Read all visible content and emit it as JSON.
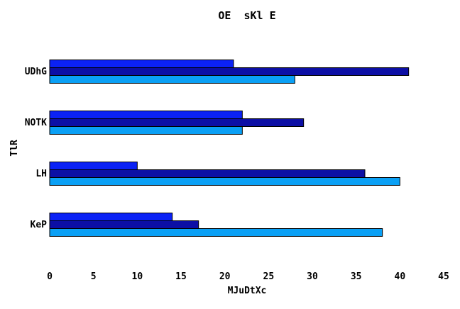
{
  "chart_data": {
    "type": "bar",
    "orientation": "horizontal",
    "title": "OE  sKl E",
    "xlabel": "MJuDtXc",
    "ylabel": "TlR",
    "categories": [
      "KeP",
      "LH",
      "NOTK",
      "UDhG"
    ],
    "series": [
      {
        "values": [
          38,
          40,
          22,
          28
        ],
        "color": "#0aa0f5"
      },
      {
        "values": [
          17,
          36,
          29,
          41
        ],
        "color": "#0c0fa5"
      },
      {
        "values": [
          14,
          10,
          22,
          21
        ],
        "color": "#0b22f5"
      }
    ],
    "xlim": [
      0,
      45
    ],
    "xticks": [
      "0",
      "5",
      "10",
      "15",
      "20",
      "25",
      "30",
      "35",
      "40",
      "45"
    ],
    "grid": false,
    "legend": "none"
  }
}
